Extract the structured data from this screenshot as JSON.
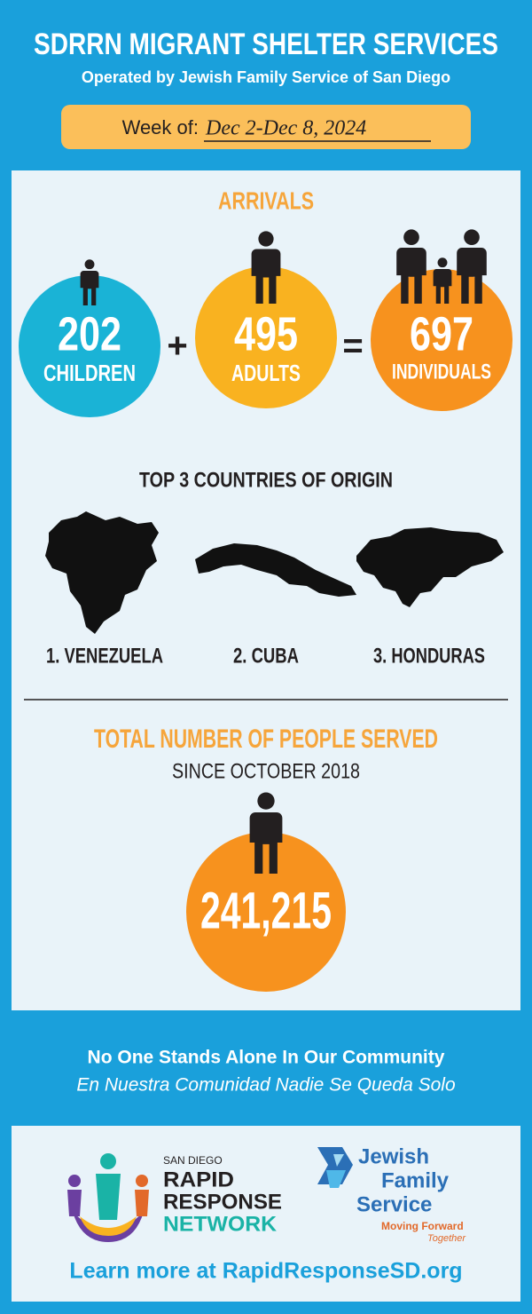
{
  "header": {
    "title": "SDRRN MIGRANT SHELTER SERVICES",
    "subtitle": "Operated by Jewish Family Service of San Diego",
    "week_label": "Week of:",
    "week": "Dec 2-Dec 8, 2024"
  },
  "arrivals": {
    "title": "ARRIVALS",
    "items": [
      {
        "value": "202",
        "label": "CHILDREN"
      },
      {
        "value": "495",
        "label": "ADULTS"
      },
      {
        "value": "697",
        "label": "INDIVIDUALS"
      }
    ],
    "plus": "+",
    "equals": "="
  },
  "countries": {
    "title": "TOP 3 COUNTRIES OF ORIGIN",
    "items": [
      "1. VENEZUELA",
      "2. CUBA",
      "3. HONDURAS"
    ]
  },
  "total": {
    "title": "TOTAL NUMBER OF PEOPLE SERVED",
    "subtitle": "SINCE OCTOBER 2018",
    "value": "241,215"
  },
  "tagline": {
    "en": "No One Stands Alone In Our Community",
    "es": "En Nuestra Comunidad Nadie Se Queda Solo"
  },
  "logos": {
    "sdrrn": [
      "SAN DIEGO",
      "RAPID",
      "RESPONSE",
      "NETWORK"
    ],
    "jfs": [
      "Jewish",
      "Family",
      "Service"
    ],
    "jfs_tagline": [
      "Moving Forward",
      "Together"
    ]
  },
  "footer": "Learn more at RapidResponseSD.org"
}
